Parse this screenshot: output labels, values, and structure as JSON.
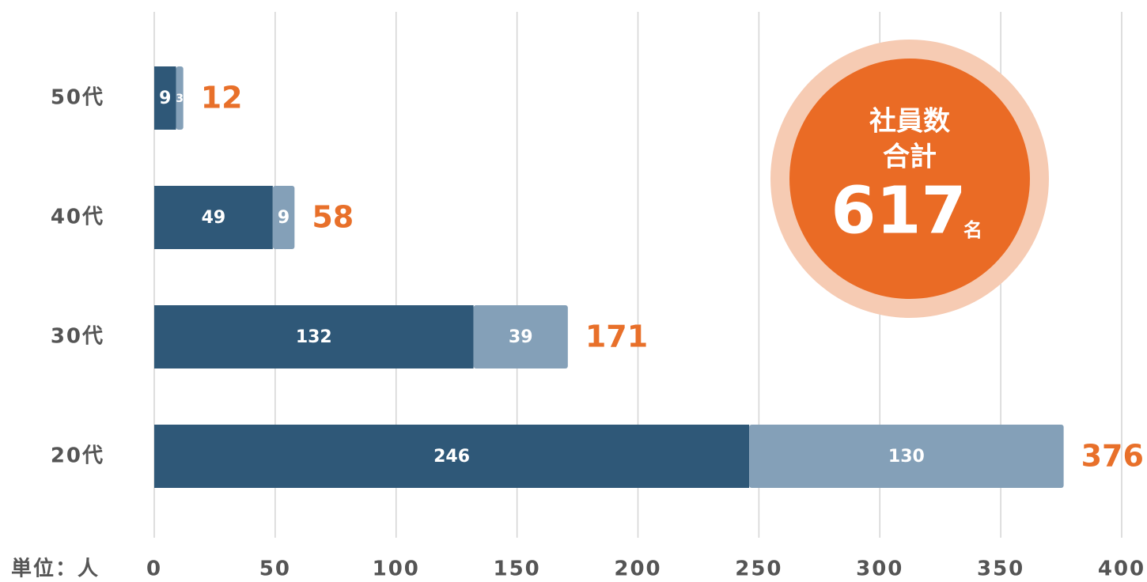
{
  "chart_data": {
    "type": "stacked_bar_horizontal",
    "categories": [
      "50代",
      "40代",
      "30代",
      "20代"
    ],
    "series": [
      {
        "color": "#2f5878",
        "values": [
          9,
          49,
          132,
          246
        ]
      },
      {
        "color": "#84a0b8",
        "values": [
          3,
          9,
          39,
          130
        ]
      }
    ],
    "totals": [
      12,
      58,
      171,
      376
    ],
    "total_color": "#e8702a",
    "xlim": [
      0,
      400
    ],
    "xticks": [
      0,
      50,
      100,
      150,
      200,
      250,
      300,
      350,
      400
    ],
    "grid": true,
    "unit_label": "単位：人",
    "badge": {
      "line1": "社員数",
      "line2": "合計",
      "value": 617,
      "suffix": "名"
    }
  }
}
